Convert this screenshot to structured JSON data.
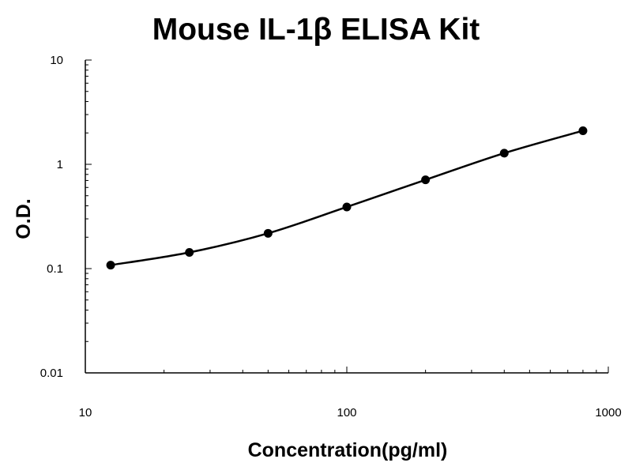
{
  "chart_data": {
    "type": "scatter",
    "title": "Mouse IL-1β ELISA Kit",
    "xlabel": "Concentration(pg/ml)",
    "ylabel": "O.D.",
    "xscale": "log",
    "yscale": "log",
    "xlim": [
      10,
      1000
    ],
    "ylim": [
      0.01,
      10
    ],
    "x_ticks": [
      "10",
      "100",
      "1000"
    ],
    "y_ticks": [
      "0.01",
      "0.1",
      "1",
      "10"
    ],
    "grid": false,
    "legend": "none",
    "fit_curve": true,
    "colors": {
      "marker": "#000000",
      "line": "#000000"
    },
    "series": [
      {
        "x": [
          12.5,
          25,
          50,
          100,
          200,
          400,
          800
        ],
        "y": [
          0.108,
          0.143,
          0.218,
          0.39,
          0.71,
          1.28,
          2.1
        ]
      }
    ]
  }
}
